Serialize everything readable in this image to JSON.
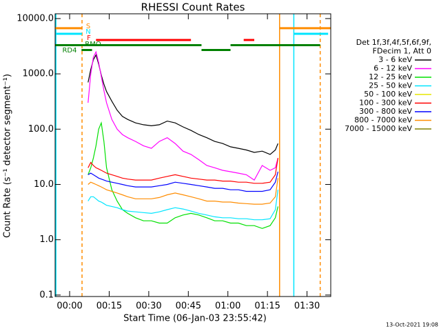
{
  "chart_data": {
    "type": "line",
    "title": "RHESSI Count Rates",
    "xlabel": "Start Time (06-Jan-03 23:55:42)",
    "ylabel": "Count Rate (s⁻¹ detector segment⁻¹)",
    "footer": "13-Oct-2021 19:08",
    "legend_title": [
      "Det 1f,3f,4f,5f,6f,9f,",
      "FDecim 1, Att 0"
    ],
    "log_y": true,
    "xlim": [
      -5.5,
      99
    ],
    "ylim": [
      0.094,
      12200
    ],
    "xticks": [
      {
        "value": 0,
        "label": "00:00"
      },
      {
        "value": 15,
        "label": "00:15"
      },
      {
        "value": 30,
        "label": "00:30"
      },
      {
        "value": 45,
        "label": "00:45"
      },
      {
        "value": 60,
        "label": "01:00"
      },
      {
        "value": 75,
        "label": "01:15"
      },
      {
        "value": 90,
        "label": "01:30"
      }
    ],
    "yticks": [
      {
        "value": 0.1,
        "label": "0.1"
      },
      {
        "value": 1,
        "label": "1.0"
      },
      {
        "value": 10,
        "label": "10.0"
      },
      {
        "value": 100,
        "label": "100.0"
      },
      {
        "value": 1000,
        "label": "1000.0"
      },
      {
        "value": 10000,
        "label": "10000.0"
      }
    ],
    "x": [
      7,
      8,
      9,
      10,
      11,
      12,
      13,
      14,
      16,
      18,
      20,
      22,
      25,
      28,
      31,
      34,
      37,
      40,
      43,
      46,
      49,
      52,
      55,
      58,
      61,
      64,
      67,
      70,
      73,
      76,
      78,
      79
    ],
    "series": [
      {
        "name": "3 - 6 keV",
        "color": "#000000",
        "values": [
          700,
          1200,
          1800,
          2200,
          1500,
          950,
          650,
          480,
          320,
          220,
          170,
          150,
          130,
          120,
          115,
          120,
          140,
          130,
          110,
          95,
          80,
          70,
          60,
          55,
          48,
          45,
          42,
          38,
          40,
          35,
          42,
          55
        ]
      },
      {
        "name": "6 - 12 keV",
        "color": "#ff00ff",
        "values": [
          300,
          1000,
          2000,
          2500,
          1600,
          900,
          500,
          300,
          150,
          100,
          80,
          70,
          60,
          50,
          45,
          60,
          70,
          55,
          40,
          35,
          28,
          22,
          20,
          18,
          17,
          16,
          15,
          12,
          22,
          18,
          20,
          30
        ]
      },
      {
        "name": "12 - 25 keV",
        "color": "#00e000",
        "values": [
          15,
          20,
          30,
          50,
          100,
          130,
          60,
          20,
          8,
          5,
          3.5,
          3,
          2.5,
          2.2,
          2.2,
          2,
          2,
          2.5,
          2.8,
          3,
          2.8,
          2.5,
          2.2,
          2.2,
          2,
          2,
          1.8,
          1.8,
          1.6,
          1.8,
          2.5,
          4
        ]
      },
      {
        "name": "25 - 50 keV",
        "color": "#00e5ff",
        "values": [
          5,
          6,
          6,
          5.5,
          5,
          4.8,
          4.5,
          4.2,
          4,
          3.8,
          3.5,
          3.3,
          3.2,
          3.1,
          3,
          3.2,
          3.5,
          3.8,
          3.6,
          3.3,
          3,
          2.8,
          2.6,
          2.5,
          2.5,
          2.4,
          2.4,
          2.3,
          2.3,
          2.4,
          3.5,
          8
        ]
      },
      {
        "name": "50 - 100 keV",
        "color": "#e6e600",
        "values": [
          null,
          null,
          null,
          null,
          null,
          null,
          null,
          null,
          null,
          null,
          null,
          null,
          null,
          null,
          null,
          null,
          null,
          null,
          null,
          null,
          null,
          null,
          null,
          null,
          null,
          null,
          null,
          null,
          null,
          null,
          null,
          null
        ]
      },
      {
        "name": "100 - 300 keV",
        "color": "#ff0000",
        "values": [
          20,
          25,
          22,
          20,
          19,
          18,
          17,
          16,
          15,
          14,
          13,
          12.5,
          12,
          12,
          12,
          13,
          14,
          15,
          14,
          13,
          12.5,
          12,
          12,
          11.5,
          11.5,
          11,
          11,
          10.5,
          10.5,
          11,
          15,
          30
        ]
      },
      {
        "name": "300 - 800 keV",
        "color": "#0000ff",
        "values": [
          15,
          16,
          15,
          14,
          13,
          12.5,
          12,
          11.5,
          11,
          10.5,
          10,
          9.5,
          9,
          9,
          9,
          9.5,
          10,
          11,
          10.5,
          10,
          9.5,
          9,
          8.5,
          8.5,
          8,
          8,
          7.5,
          7.5,
          7.5,
          8,
          11,
          17
        ]
      },
      {
        "name": "800 - 7000 keV",
        "color": "#ff8c00",
        "values": [
          10,
          11,
          10.5,
          10,
          9.5,
          9,
          8.5,
          8,
          7.5,
          7,
          6.5,
          6,
          5.5,
          5.5,
          5.5,
          5.8,
          6.5,
          7,
          6.5,
          6,
          5.5,
          5,
          5,
          4.8,
          4.8,
          4.6,
          4.5,
          4.4,
          4.4,
          4.6,
          6,
          13
        ]
      },
      {
        "name": "7000 - 15000 keV",
        "color": "#808000",
        "values": [
          null,
          null,
          null,
          null,
          null,
          null,
          null,
          null,
          null,
          null,
          null,
          null,
          null,
          null,
          null,
          null,
          null,
          null,
          null,
          null,
          null,
          null,
          null,
          null,
          null,
          null,
          null,
          null,
          null,
          null,
          null,
          null
        ]
      }
    ],
    "flags": [
      {
        "label": "S",
        "color": "#ff8c00",
        "level": 6700,
        "intervals": [
          [
            -5.5,
            4.7
          ],
          [
            79.5,
            99
          ]
        ]
      },
      {
        "label": "N",
        "color": "#00e5ff",
        "level": 5300,
        "intervals": [
          [
            -5.5,
            4.7
          ],
          [
            85,
            98
          ]
        ]
      },
      {
        "label": "F",
        "color": "#ff0000",
        "level": 4100,
        "intervals": [
          [
            10,
            46
          ],
          [
            66,
            70
          ]
        ]
      },
      {
        "label": "RMO",
        "color": "#008000",
        "level": 3300,
        "intervals": [
          [
            -5.5,
            50
          ],
          [
            61,
            95
          ]
        ]
      },
      {
        "label": "RD4",
        "color": "#008000",
        "level": 2700,
        "intervals": [
          [
            4.5,
            8.5
          ],
          [
            50,
            61
          ]
        ]
      }
    ],
    "vertical_lines": [
      {
        "x": -5.2,
        "color": "#00e5ff",
        "dashed": false
      },
      {
        "x": 4.7,
        "color": "#ff8c00",
        "dashed": true
      },
      {
        "x": 79.6,
        "color": "#ff8c00",
        "dashed": false
      },
      {
        "x": 85,
        "color": "#00e5ff",
        "dashed": false
      },
      {
        "x": 95,
        "color": "#ff8c00",
        "dashed": true
      }
    ]
  }
}
